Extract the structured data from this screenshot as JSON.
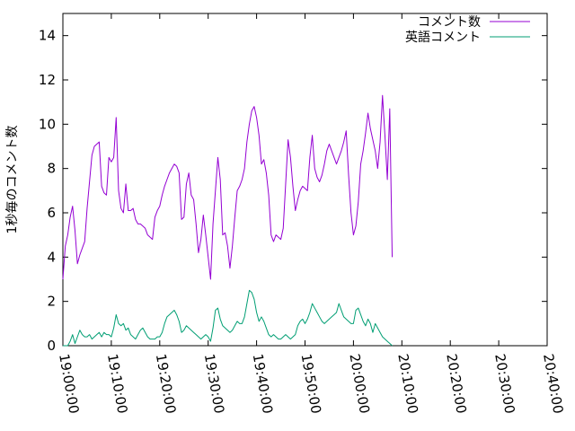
{
  "chart_data": {
    "type": "line",
    "ylabel": "1秒毎のコメント数",
    "xlabel": "",
    "ylim": [
      0,
      15
    ],
    "yticks": [
      0,
      2,
      4,
      6,
      8,
      10,
      12,
      14
    ],
    "xlim": [
      "19:00:00",
      "20:40:00"
    ],
    "xticks": [
      "19:00:00",
      "19:10:00",
      "19:20:00",
      "19:30:00",
      "19:40:00",
      "19:50:00",
      "20:00:00",
      "20:10:00",
      "20:20:00",
      "20:30:00",
      "20:40:00"
    ],
    "legend_position": "top-right",
    "grid": false,
    "series": [
      {
        "name": "コメント数",
        "color": "#9400d3",
        "points": [
          [
            "19:00:00",
            3.0
          ],
          [
            "19:00:30",
            4.5
          ],
          [
            "19:01:00",
            5.0
          ],
          [
            "19:01:30",
            5.8
          ],
          [
            "19:02:00",
            6.3
          ],
          [
            "19:02:30",
            5.2
          ],
          [
            "19:03:00",
            3.7
          ],
          [
            "19:03:30",
            4.1
          ],
          [
            "19:04:00",
            4.4
          ],
          [
            "19:04:30",
            4.7
          ],
          [
            "19:05:00",
            6.2
          ],
          [
            "19:05:30",
            7.4
          ],
          [
            "19:06:00",
            8.6
          ],
          [
            "19:06:30",
            9.0
          ],
          [
            "19:07:00",
            9.1
          ],
          [
            "19:07:30",
            9.2
          ],
          [
            "19:08:00",
            7.2
          ],
          [
            "19:08:30",
            6.9
          ],
          [
            "19:09:00",
            6.8
          ],
          [
            "19:09:30",
            8.5
          ],
          [
            "19:10:00",
            8.3
          ],
          [
            "19:10:30",
            8.5
          ],
          [
            "19:11:00",
            10.3
          ],
          [
            "19:11:30",
            7.0
          ],
          [
            "19:12:00",
            6.2
          ],
          [
            "19:12:30",
            6.0
          ],
          [
            "19:13:00",
            7.3
          ],
          [
            "19:13:30",
            6.1
          ],
          [
            "19:14:00",
            6.1
          ],
          [
            "19:14:30",
            6.2
          ],
          [
            "19:15:00",
            5.7
          ],
          [
            "19:15:30",
            5.5
          ],
          [
            "19:16:00",
            5.5
          ],
          [
            "19:16:30",
            5.4
          ],
          [
            "19:17:00",
            5.3
          ],
          [
            "19:17:30",
            5.0
          ],
          [
            "19:18:00",
            4.9
          ],
          [
            "19:18:30",
            4.8
          ],
          [
            "19:19:00",
            5.8
          ],
          [
            "19:19:30",
            6.1
          ],
          [
            "19:20:00",
            6.3
          ],
          [
            "19:20:30",
            6.8
          ],
          [
            "19:21:00",
            7.2
          ],
          [
            "19:21:30",
            7.5
          ],
          [
            "19:22:00",
            7.8
          ],
          [
            "19:22:30",
            8.0
          ],
          [
            "19:23:00",
            8.2
          ],
          [
            "19:23:30",
            8.1
          ],
          [
            "19:24:00",
            7.8
          ],
          [
            "19:24:30",
            5.7
          ],
          [
            "19:25:00",
            5.8
          ],
          [
            "19:25:30",
            7.3
          ],
          [
            "19:26:00",
            7.8
          ],
          [
            "19:26:30",
            6.8
          ],
          [
            "19:27:00",
            6.6
          ],
          [
            "19:27:30",
            5.5
          ],
          [
            "19:28:00",
            4.2
          ],
          [
            "19:28:30",
            4.8
          ],
          [
            "19:29:00",
            5.9
          ],
          [
            "19:29:30",
            5.0
          ],
          [
            "19:30:00",
            4.0
          ],
          [
            "19:30:30",
            3.0
          ],
          [
            "19:31:00",
            5.5
          ],
          [
            "19:31:30",
            7.0
          ],
          [
            "19:32:00",
            8.5
          ],
          [
            "19:32:30",
            7.5
          ],
          [
            "19:33:00",
            5.0
          ],
          [
            "19:33:30",
            5.1
          ],
          [
            "19:34:00",
            4.5
          ],
          [
            "19:34:30",
            3.5
          ],
          [
            "19:35:00",
            4.5
          ],
          [
            "19:35:30",
            5.8
          ],
          [
            "19:36:00",
            7.0
          ],
          [
            "19:36:30",
            7.2
          ],
          [
            "19:37:00",
            7.5
          ],
          [
            "19:37:30",
            8.0
          ],
          [
            "19:38:00",
            9.2
          ],
          [
            "19:38:30",
            10.0
          ],
          [
            "19:39:00",
            10.6
          ],
          [
            "19:39:30",
            10.8
          ],
          [
            "19:40:00",
            10.3
          ],
          [
            "19:40:30",
            9.5
          ],
          [
            "19:41:00",
            8.2
          ],
          [
            "19:41:30",
            8.4
          ],
          [
            "19:42:00",
            7.8
          ],
          [
            "19:42:30",
            6.8
          ],
          [
            "19:43:00",
            5.0
          ],
          [
            "19:43:30",
            4.7
          ],
          [
            "19:44:00",
            5.0
          ],
          [
            "19:44:30",
            4.9
          ],
          [
            "19:45:00",
            4.8
          ],
          [
            "19:45:30",
            5.3
          ],
          [
            "19:46:00",
            7.3
          ],
          [
            "19:46:30",
            9.3
          ],
          [
            "19:47:00",
            8.5
          ],
          [
            "19:47:30",
            7.2
          ],
          [
            "19:48:00",
            6.1
          ],
          [
            "19:48:30",
            6.6
          ],
          [
            "19:49:00",
            7.0
          ],
          [
            "19:49:30",
            7.2
          ],
          [
            "19:50:00",
            7.1
          ],
          [
            "19:50:30",
            7.0
          ],
          [
            "19:51:00",
            8.5
          ],
          [
            "19:51:30",
            9.5
          ],
          [
            "19:52:00",
            8.0
          ],
          [
            "19:52:30",
            7.6
          ],
          [
            "19:53:00",
            7.4
          ],
          [
            "19:53:30",
            7.7
          ],
          [
            "19:54:00",
            8.2
          ],
          [
            "19:54:30",
            8.8
          ],
          [
            "19:55:00",
            9.1
          ],
          [
            "19:55:30",
            8.8
          ],
          [
            "19:56:00",
            8.5
          ],
          [
            "19:56:30",
            8.2
          ],
          [
            "19:57:00",
            8.5
          ],
          [
            "19:57:30",
            8.8
          ],
          [
            "19:58:00",
            9.2
          ],
          [
            "19:58:30",
            9.7
          ],
          [
            "19:59:00",
            7.7
          ],
          [
            "19:59:30",
            6.0
          ],
          [
            "20:00:00",
            5.0
          ],
          [
            "20:00:30",
            5.4
          ],
          [
            "20:01:00",
            6.5
          ],
          [
            "20:01:30",
            8.2
          ],
          [
            "20:02:00",
            8.8
          ],
          [
            "20:02:30",
            9.6
          ],
          [
            "20:03:00",
            10.5
          ],
          [
            "20:03:30",
            9.8
          ],
          [
            "20:04:00",
            9.3
          ],
          [
            "20:04:30",
            8.8
          ],
          [
            "20:05:00",
            8.0
          ],
          [
            "20:05:30",
            9.2
          ],
          [
            "20:06:00",
            11.3
          ],
          [
            "20:06:30",
            9.5
          ],
          [
            "20:07:00",
            7.5
          ],
          [
            "20:07:30",
            10.7
          ],
          [
            "20:08:00",
            4.0
          ]
        ]
      },
      {
        "name": "英語コメント",
        "color": "#009e73",
        "points": [
          [
            "19:00:00",
            0.0
          ],
          [
            "19:00:30",
            0.0
          ],
          [
            "19:01:00",
            0.0
          ],
          [
            "19:01:30",
            0.2
          ],
          [
            "19:02:00",
            0.5
          ],
          [
            "19:02:30",
            0.1
          ],
          [
            "19:03:00",
            0.4
          ],
          [
            "19:03:30",
            0.7
          ],
          [
            "19:04:00",
            0.5
          ],
          [
            "19:04:30",
            0.4
          ],
          [
            "19:05:00",
            0.4
          ],
          [
            "19:05:30",
            0.5
          ],
          [
            "19:06:00",
            0.3
          ],
          [
            "19:06:30",
            0.4
          ],
          [
            "19:07:00",
            0.5
          ],
          [
            "19:07:30",
            0.6
          ],
          [
            "19:08:00",
            0.4
          ],
          [
            "19:08:30",
            0.6
          ],
          [
            "19:09:00",
            0.5
          ],
          [
            "19:09:30",
            0.5
          ],
          [
            "19:10:00",
            0.4
          ],
          [
            "19:10:30",
            0.8
          ],
          [
            "19:11:00",
            1.4
          ],
          [
            "19:11:30",
            1.0
          ],
          [
            "19:12:00",
            0.9
          ],
          [
            "19:12:30",
            1.0
          ],
          [
            "19:13:00",
            0.7
          ],
          [
            "19:13:30",
            0.8
          ],
          [
            "19:14:00",
            0.5
          ],
          [
            "19:14:30",
            0.4
          ],
          [
            "19:15:00",
            0.3
          ],
          [
            "19:15:30",
            0.5
          ],
          [
            "19:16:00",
            0.7
          ],
          [
            "19:16:30",
            0.8
          ],
          [
            "19:17:00",
            0.6
          ],
          [
            "19:17:30",
            0.4
          ],
          [
            "19:18:00",
            0.3
          ],
          [
            "19:18:30",
            0.3
          ],
          [
            "19:19:00",
            0.3
          ],
          [
            "19:19:30",
            0.4
          ],
          [
            "19:20:00",
            0.4
          ],
          [
            "19:20:30",
            0.6
          ],
          [
            "19:21:00",
            1.0
          ],
          [
            "19:21:30",
            1.3
          ],
          [
            "19:22:00",
            1.4
          ],
          [
            "19:22:30",
            1.5
          ],
          [
            "19:23:00",
            1.6
          ],
          [
            "19:23:30",
            1.4
          ],
          [
            "19:24:00",
            1.1
          ],
          [
            "19:24:30",
            0.6
          ],
          [
            "19:25:00",
            0.7
          ],
          [
            "19:25:30",
            0.9
          ],
          [
            "19:26:00",
            0.8
          ],
          [
            "19:26:30",
            0.7
          ],
          [
            "19:27:00",
            0.6
          ],
          [
            "19:27:30",
            0.5
          ],
          [
            "19:28:00",
            0.4
          ],
          [
            "19:28:30",
            0.3
          ],
          [
            "19:29:00",
            0.4
          ],
          [
            "19:29:30",
            0.5
          ],
          [
            "19:30:00",
            0.4
          ],
          [
            "19:30:30",
            0.2
          ],
          [
            "19:31:00",
            0.8
          ],
          [
            "19:31:30",
            1.6
          ],
          [
            "19:32:00",
            1.7
          ],
          [
            "19:32:30",
            1.2
          ],
          [
            "19:33:00",
            0.9
          ],
          [
            "19:33:30",
            0.8
          ],
          [
            "19:34:00",
            0.7
          ],
          [
            "19:34:30",
            0.6
          ],
          [
            "19:35:00",
            0.7
          ],
          [
            "19:35:30",
            0.9
          ],
          [
            "19:36:00",
            1.1
          ],
          [
            "19:36:30",
            1.0
          ],
          [
            "19:37:00",
            1.0
          ],
          [
            "19:37:30",
            1.3
          ],
          [
            "19:38:00",
            1.9
          ],
          [
            "19:38:30",
            2.5
          ],
          [
            "19:39:00",
            2.4
          ],
          [
            "19:39:30",
            2.1
          ],
          [
            "19:40:00",
            1.5
          ],
          [
            "19:40:30",
            1.1
          ],
          [
            "19:41:00",
            1.3
          ],
          [
            "19:41:30",
            1.1
          ],
          [
            "19:42:00",
            0.8
          ],
          [
            "19:42:30",
            0.5
          ],
          [
            "19:43:00",
            0.4
          ],
          [
            "19:43:30",
            0.5
          ],
          [
            "19:44:00",
            0.4
          ],
          [
            "19:44:30",
            0.3
          ],
          [
            "19:45:00",
            0.3
          ],
          [
            "19:45:30",
            0.4
          ],
          [
            "19:46:00",
            0.5
          ],
          [
            "19:46:30",
            0.4
          ],
          [
            "19:47:00",
            0.3
          ],
          [
            "19:47:30",
            0.4
          ],
          [
            "19:48:00",
            0.5
          ],
          [
            "19:48:30",
            0.9
          ],
          [
            "19:49:00",
            1.1
          ],
          [
            "19:49:30",
            1.2
          ],
          [
            "19:50:00",
            1.0
          ],
          [
            "19:50:30",
            1.2
          ],
          [
            "19:51:00",
            1.5
          ],
          [
            "19:51:30",
            1.9
          ],
          [
            "19:52:00",
            1.7
          ],
          [
            "19:52:30",
            1.5
          ],
          [
            "19:53:00",
            1.3
          ],
          [
            "19:53:30",
            1.1
          ],
          [
            "19:54:00",
            1.0
          ],
          [
            "19:54:30",
            1.1
          ],
          [
            "19:55:00",
            1.2
          ],
          [
            "19:55:30",
            1.3
          ],
          [
            "19:56:00",
            1.4
          ],
          [
            "19:56:30",
            1.5
          ],
          [
            "19:57:00",
            1.9
          ],
          [
            "19:57:30",
            1.6
          ],
          [
            "19:58:00",
            1.3
          ],
          [
            "19:58:30",
            1.2
          ],
          [
            "19:59:00",
            1.1
          ],
          [
            "19:59:30",
            1.0
          ],
          [
            "20:00:00",
            1.0
          ],
          [
            "20:00:30",
            1.6
          ],
          [
            "20:01:00",
            1.7
          ],
          [
            "20:01:30",
            1.4
          ],
          [
            "20:02:00",
            1.1
          ],
          [
            "20:02:30",
            0.9
          ],
          [
            "20:03:00",
            1.2
          ],
          [
            "20:03:30",
            1.0
          ],
          [
            "20:04:00",
            0.6
          ],
          [
            "20:04:30",
            1.0
          ],
          [
            "20:05:00",
            0.8
          ],
          [
            "20:05:30",
            0.6
          ],
          [
            "20:06:00",
            0.4
          ],
          [
            "20:06:30",
            0.3
          ],
          [
            "20:07:00",
            0.2
          ],
          [
            "20:07:30",
            0.1
          ],
          [
            "20:08:00",
            0.0
          ]
        ]
      }
    ]
  }
}
